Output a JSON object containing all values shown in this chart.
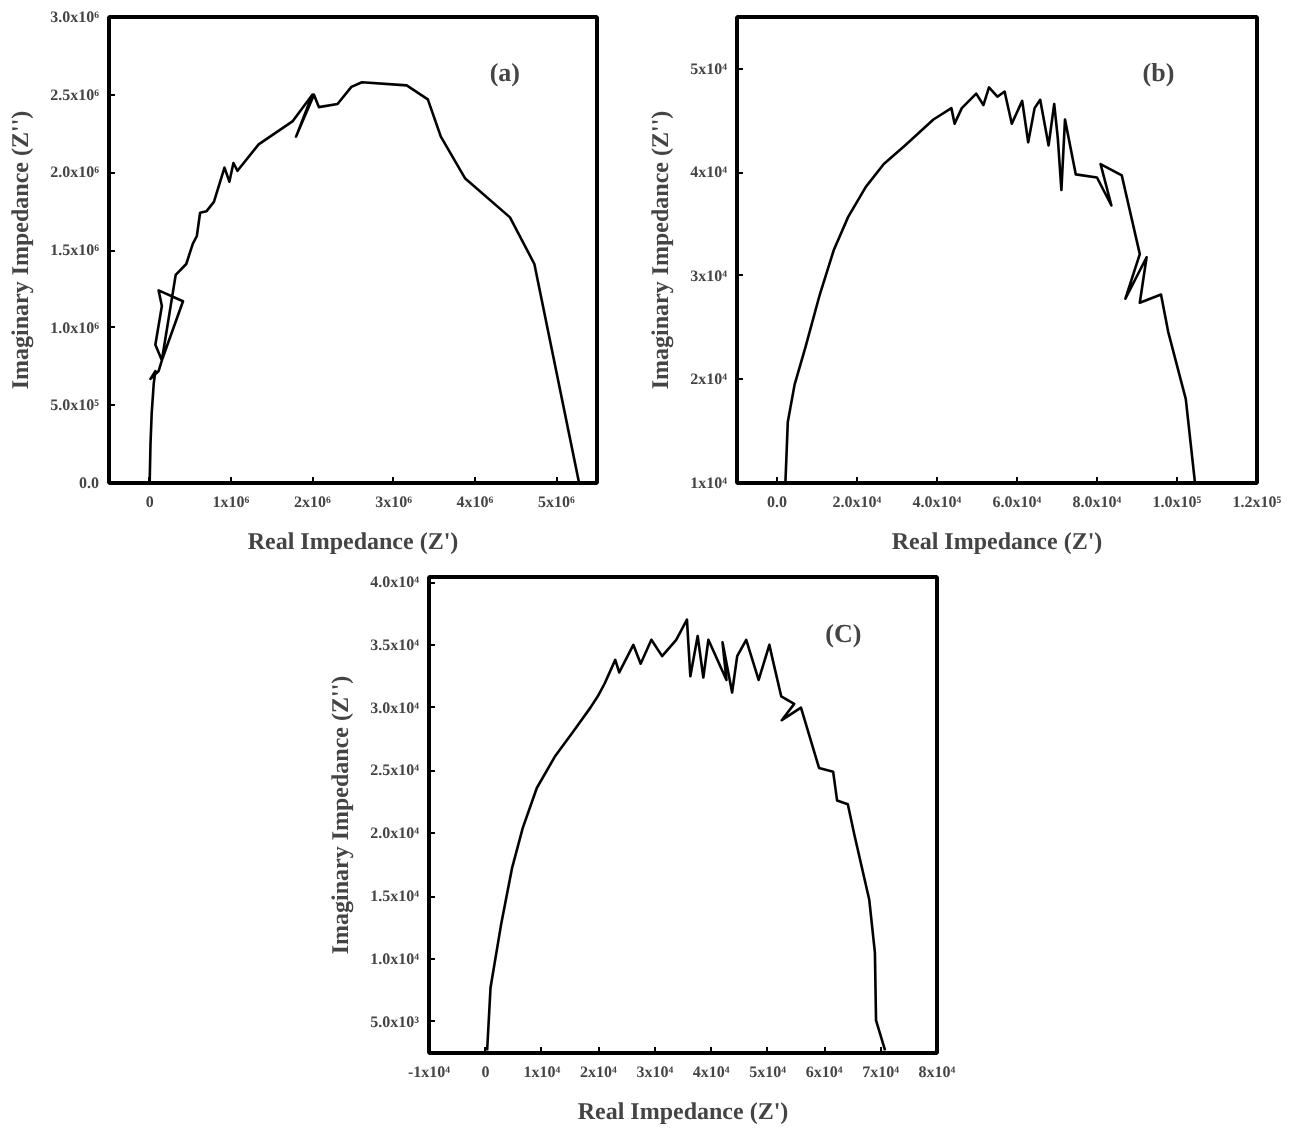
{
  "chart_data": [
    {
      "type": "line",
      "xlabel": "Real Impedance (Z')",
      "ylabel": "Imaginary Impedance (Z'')",
      "annotations": [
        "(a)"
      ],
      "grid": false,
      "marker": "none",
      "line_style": "solid",
      "xlim": [
        -500000,
        5500000
      ],
      "ylim": [
        0,
        3000000
      ],
      "xticks": [
        {
          "value": 0,
          "label": "0"
        },
        {
          "value": 1000000,
          "label": "1x10⁶"
        },
        {
          "value": 2000000,
          "label": "2x10⁶"
        },
        {
          "value": 3000000,
          "label": "3x10⁶"
        },
        {
          "value": 4000000,
          "label": "4x10⁶"
        },
        {
          "value": 5000000,
          "label": "5x10⁶"
        }
      ],
      "yticks": [
        {
          "value": 0,
          "label": "0.0"
        },
        {
          "value": 500000,
          "label": "5.0x10⁵"
        },
        {
          "value": 1000000,
          "label": "1.0x10⁶"
        },
        {
          "value": 1500000,
          "label": "1.5x10⁶"
        },
        {
          "value": 2000000,
          "label": "2.0x10⁶"
        },
        {
          "value": 2500000,
          "label": "2.5x10⁶"
        },
        {
          "value": 3000000,
          "label": "3.0x10⁶"
        }
      ],
      "series": [
        {
          "color": "#000000",
          "x": [
            0,
            10000,
            25000,
            50000,
            70000,
            10000,
            110000,
            150000,
            70000,
            150000,
            110000,
            410000,
            150000,
            320000,
            450000,
            530000,
            580000,
            620000,
            700000,
            790000,
            920000,
            980000,
            1030000,
            1080000,
            1340000,
            1760000,
            2000000,
            1800000,
            2020000,
            2080000,
            2310000,
            2480000,
            2610000,
            3160000,
            3420000,
            3580000,
            3880000,
            4430000,
            4730000,
            5280000
          ],
          "values": [
            0,
            250000,
            450000,
            640000,
            720000,
            670000,
            720000,
            790000,
            890000,
            1140000,
            1240000,
            1170000,
            790000,
            1340000,
            1410000,
            1540000,
            1590000,
            1740000,
            1750000,
            1810000,
            2030000,
            1940000,
            2060000,
            2010000,
            2180000,
            2330000,
            2500000,
            2230000,
            2500000,
            2420000,
            2440000,
            2550000,
            2580000,
            2560000,
            2470000,
            2230000,
            1960000,
            1710000,
            1410000,
            0
          ]
        }
      ]
    },
    {
      "type": "line",
      "xlabel": "Real Impedance (Z')",
      "ylabel": "Imaginary Impedance (Z'')",
      "annotations": [
        "(b)"
      ],
      "grid": false,
      "marker": "none",
      "line_style": "solid",
      "xlim": [
        -10000,
        120000
      ],
      "ylim": [
        10000,
        55000
      ],
      "xticks": [
        {
          "value": 0,
          "label": "0.0"
        },
        {
          "value": 20000,
          "label": "2.0x10⁴"
        },
        {
          "value": 40000,
          "label": "4.0x10⁴"
        },
        {
          "value": 60000,
          "label": "6.0x10⁴"
        },
        {
          "value": 80000,
          "label": "8.0x10⁴"
        },
        {
          "value": 100000,
          "label": "1.0x10⁵"
        },
        {
          "value": 120000,
          "label": "1.2x10⁵"
        }
      ],
      "yticks": [
        {
          "value": 10000,
          "label": "1x10⁴"
        },
        {
          "value": 20000,
          "label": "2x10⁴"
        },
        {
          "value": 30000,
          "label": "3x10⁴"
        },
        {
          "value": 40000,
          "label": "4x10⁴"
        },
        {
          "value": 50000,
          "label": "5x10⁴"
        }
      ],
      "series": [
        {
          "color": "#000000",
          "x": [
            2100,
            2700,
            4400,
            7100,
            10700,
            14200,
            17800,
            22200,
            26700,
            32000,
            39100,
            43600,
            44400,
            46200,
            49800,
            51600,
            53000,
            55100,
            56900,
            58700,
            61300,
            62800,
            64400,
            65800,
            67900,
            69300,
            70200,
            71100,
            72000,
            74700,
            80000,
            83600,
            80900,
            86200,
            90700,
            87100,
            92400,
            90700,
            96000,
            97800,
            102200,
            104500
          ],
          "values": [
            10000,
            15900,
            19500,
            23100,
            28200,
            32500,
            35700,
            38600,
            40800,
            42600,
            45100,
            46200,
            44700,
            46200,
            47600,
            46500,
            48200,
            47300,
            47800,
            44700,
            46900,
            42900,
            46200,
            47000,
            42600,
            46600,
            43300,
            38300,
            45100,
            39800,
            39500,
            36800,
            40800,
            39700,
            32100,
            27800,
            31800,
            27400,
            28200,
            24600,
            18100,
            10000
          ]
        }
      ]
    },
    {
      "type": "line",
      "xlabel": "Real Impedance (Z')",
      "ylabel": "Imaginary Impedance (Z'')",
      "annotations": [
        "(C)"
      ],
      "grid": false,
      "marker": "none",
      "line_style": "solid",
      "xlim": [
        -10000,
        80000
      ],
      "ylim": [
        2500,
        40400
      ],
      "xticks": [
        {
          "value": -10000,
          "label": "-1x10⁴"
        },
        {
          "value": 0,
          "label": "0"
        },
        {
          "value": 10000,
          "label": "1x10⁴"
        },
        {
          "value": 20000,
          "label": "2x10⁴"
        },
        {
          "value": 30000,
          "label": "3x10⁴"
        },
        {
          "value": 40000,
          "label": "4x10⁴"
        },
        {
          "value": 50000,
          "label": "5x10⁴"
        },
        {
          "value": 60000,
          "label": "6x10⁴"
        },
        {
          "value": 70000,
          "label": "7x10⁴"
        },
        {
          "value": 80000,
          "label": "8x10⁴"
        }
      ],
      "yticks": [
        {
          "value": 5000,
          "label": "5.0x10³"
        },
        {
          "value": 10000,
          "label": "1.0x10⁴"
        },
        {
          "value": 15000,
          "label": "1.5x10⁴"
        },
        {
          "value": 20000,
          "label": "2.0x10⁴"
        },
        {
          "value": 25000,
          "label": "2.5x10⁴"
        },
        {
          "value": 30000,
          "label": "3.0x10⁴"
        },
        {
          "value": 35000,
          "label": "3.5x10⁴"
        },
        {
          "value": 40000,
          "label": "4.0x10⁴"
        }
      ],
      "series": [
        {
          "color": "#000000",
          "x": [
            300,
            900,
            2800,
            4700,
            6600,
            9100,
            12300,
            15400,
            18600,
            19900,
            21100,
            23000,
            23700,
            26200,
            27500,
            29400,
            31300,
            33800,
            35700,
            36300,
            37600,
            38600,
            39500,
            42700,
            42000,
            43700,
            44600,
            46200,
            48400,
            50300,
            50900,
            52400,
            54700,
            52500,
            55900,
            59100,
            61600,
            62300,
            64200,
            65400,
            68000,
            69000,
            69200,
            70800
          ],
          "values": [
            2700,
            7700,
            12800,
            17200,
            20400,
            23600,
            26100,
            28000,
            30000,
            30900,
            31900,
            33800,
            32800,
            35000,
            33500,
            35400,
            34100,
            35400,
            37000,
            32500,
            35700,
            32400,
            35400,
            32200,
            35200,
            31200,
            34100,
            35400,
            32200,
            35000,
            33800,
            30900,
            30300,
            29000,
            30000,
            25200,
            24900,
            22600,
            22300,
            19800,
            14700,
            10500,
            5100,
            2700
          ]
        }
      ]
    }
  ]
}
